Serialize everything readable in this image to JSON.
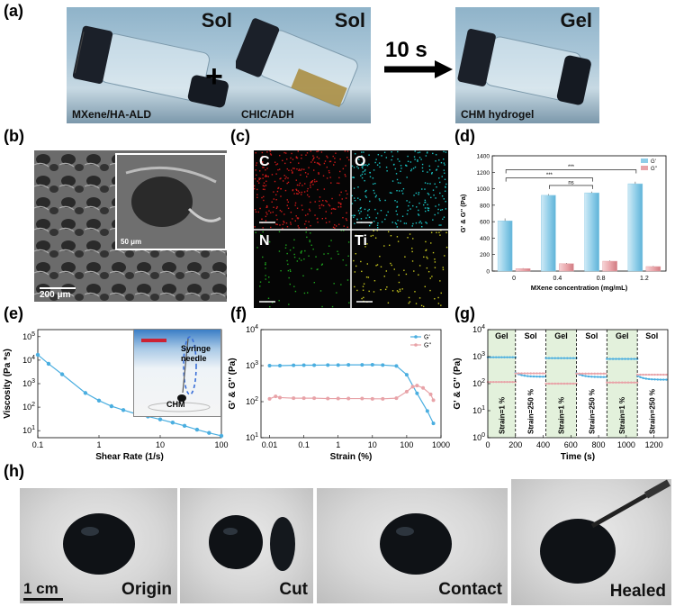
{
  "panel_labels": {
    "a": "(a)",
    "b": "(b)",
    "c": "(c)",
    "d": "(d)",
    "e": "(e)",
    "f": "(f)",
    "g": "(g)",
    "h": "(h)"
  },
  "panel_a": {
    "vial1": {
      "state": "Sol",
      "caption": "MXene/HA-ALD"
    },
    "vial2": {
      "state": "Sol",
      "caption": "CHIC/ADH"
    },
    "vial3": {
      "state": "Gel",
      "caption": "CHM hydrogel"
    },
    "plus": "+",
    "arrow_label": "10 s"
  },
  "panel_b": {
    "scale_main": "200 μm",
    "scale_inset": "50 μm"
  },
  "panel_c": {
    "elements": [
      "C",
      "O",
      "N",
      "Ti"
    ],
    "colors": [
      "#d11a1a",
      "#19c4c4",
      "#1ea51e",
      "#c8c81e"
    ]
  },
  "panel_e_inset": {
    "label1": "Syringe",
    "label2": "needle",
    "label3": "CHM"
  },
  "panel_h": {
    "captions": [
      "Origin",
      "Cut",
      "Contact",
      "Healed"
    ],
    "scale": "1 cm"
  },
  "chart_data": [
    {
      "panel": "d",
      "type": "bar",
      "categories": [
        "0",
        "0.4",
        "0.8",
        "1.2"
      ],
      "series": [
        {
          "name": "G'",
          "values": [
            610,
            920,
            950,
            1060
          ],
          "errors": [
            30,
            15,
            15,
            25
          ],
          "color": "#8ecde8"
        },
        {
          "name": "G''",
          "values": [
            30,
            90,
            120,
            55
          ],
          "errors": [
            5,
            8,
            8,
            6
          ],
          "color": "#e8a3a8"
        }
      ],
      "xlabel": "MXene concentration (mg/mL)",
      "ylabel": "G' & G'' (Pa)",
      "ylim": [
        0,
        1400
      ],
      "yticks": [
        "0",
        "200",
        "400",
        "600",
        "800",
        "1000",
        "1200",
        "1400"
      ],
      "significance": [
        "***",
        "***",
        "ns"
      ],
      "legend_position": "top-right"
    },
    {
      "panel": "e",
      "type": "line",
      "x": [
        0.1,
        0.15,
        0.25,
        0.6,
        1,
        1.6,
        2.5,
        4,
        6.3,
        10,
        16,
        25,
        40,
        63,
        100
      ],
      "y": [
        17000,
        7000,
        2500,
        400,
        190,
        110,
        75,
        52,
        40,
        30,
        22,
        16,
        11,
        8,
        6
      ],
      "xlabel": "Shear Rate (1/s)",
      "ylabel": "Viscosity (Pa *s)",
      "xscale": "log",
      "yscale": "log",
      "xticks": [
        "0.1",
        "1",
        "10",
        "100"
      ],
      "yticks": [
        "10^1",
        "10^2",
        "10^3",
        "10^4",
        "10^5"
      ],
      "color": "#4aaee0"
    },
    {
      "panel": "f",
      "type": "line",
      "xscale": "log",
      "yscale": "log",
      "series": [
        {
          "name": "G'",
          "x": [
            0.01,
            0.02,
            0.05,
            0.1,
            0.2,
            0.5,
            1,
            2,
            5,
            10,
            20,
            50,
            100,
            200,
            400,
            600
          ],
          "y": [
            1000,
            1000,
            1020,
            1030,
            1030,
            1040,
            1040,
            1050,
            1050,
            1060,
            1040,
            980,
            560,
            170,
            55,
            25
          ],
          "color": "#4aaee0"
        },
        {
          "name": "G''",
          "x": [
            0.01,
            0.015,
            0.02,
            0.05,
            0.1,
            0.2,
            0.5,
            1,
            2,
            5,
            10,
            20,
            50,
            100,
            150,
            200,
            300,
            500,
            600
          ],
          "y": [
            120,
            140,
            130,
            125,
            125,
            125,
            122,
            122,
            122,
            122,
            120,
            120,
            125,
            190,
            260,
            280,
            240,
            160,
            110
          ],
          "color": "#e8a3a8"
        }
      ],
      "xlabel": "Strain (%)",
      "ylabel": "G' & G'' (Pa)",
      "xticks": [
        "0.01",
        "0.1",
        "1",
        "10",
        "100",
        "1000"
      ],
      "yticks": [
        "10^1",
        "10^2",
        "10^3",
        "10^4"
      ],
      "legend_position": "top-right"
    },
    {
      "panel": "g",
      "type": "line",
      "yscale": "log",
      "xlim": [
        0,
        1300
      ],
      "xticks": [
        "0",
        "200",
        "400",
        "600",
        "800",
        "1000",
        "1200"
      ],
      "yticks": [
        "10^0",
        "10^1",
        "10^2",
        "10^3",
        "10^4"
      ],
      "xlabel": "Time (s)",
      "ylabel": "G' & G'' (Pa)",
      "segments": [
        {
          "state": "Gel",
          "strain": "Strain=1 %",
          "t0": 0,
          "t1": 200,
          "G1": 950,
          "G2": 115
        },
        {
          "state": "Sol",
          "strain": "Strain=250 %",
          "t0": 200,
          "t1": 420,
          "G1": 180,
          "G2": 240
        },
        {
          "state": "Gel",
          "strain": "Strain=1 %",
          "t0": 420,
          "t1": 640,
          "G1": 880,
          "G2": 100
        },
        {
          "state": "Sol",
          "strain": "Strain=250 %",
          "t0": 640,
          "t1": 860,
          "G1": 175,
          "G2": 235
        },
        {
          "state": "Gel",
          "strain": "Strain=1 %",
          "t0": 860,
          "t1": 1080,
          "G1": 820,
          "G2": 110
        },
        {
          "state": "Sol",
          "strain": "Strain=250 %",
          "t0": 1080,
          "t1": 1290,
          "G1": 140,
          "G2": 215
        }
      ]
    }
  ]
}
